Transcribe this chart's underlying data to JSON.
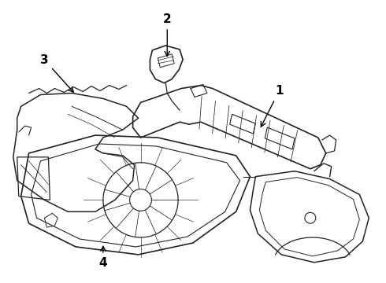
{
  "background_color": "#ffffff",
  "line_color": "#222222",
  "label_color": "#000000",
  "arrow_color": "#000000",
  "figsize": [
    4.9,
    3.6
  ],
  "dpi": 100
}
